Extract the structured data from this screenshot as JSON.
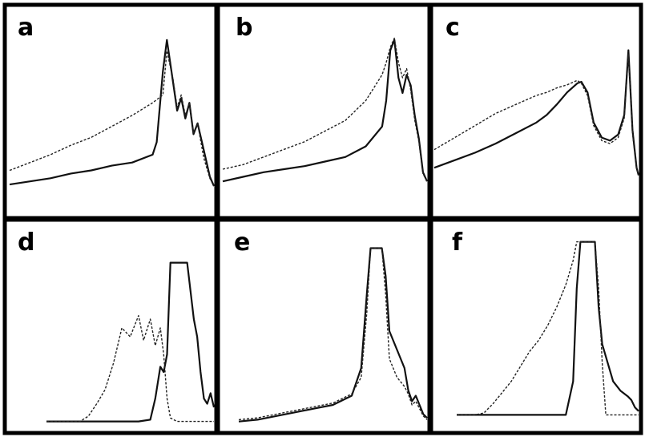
{
  "colors": {
    "frame": "#000000",
    "solid_trace": "#111111",
    "dashed_trace": "#222222",
    "background": "#ffffff"
  },
  "chart_data": [
    {
      "type": "line",
      "panel": "a",
      "x_range": [
        0,
        100
      ],
      "ylim": [
        0,
        1
      ],
      "series": [
        {
          "style": "solid",
          "x": [
            0,
            10,
            20,
            30,
            40,
            50,
            60,
            70,
            72,
            75,
            77,
            80,
            82,
            84,
            86,
            88,
            90,
            92,
            95,
            98,
            100
          ],
          "y": [
            0.03,
            0.05,
            0.07,
            0.1,
            0.12,
            0.15,
            0.17,
            0.22,
            0.3,
            0.75,
            0.95,
            0.68,
            0.5,
            0.58,
            0.45,
            0.55,
            0.35,
            0.42,
            0.25,
            0.08,
            0.02
          ]
        },
        {
          "style": "dashed",
          "x": [
            0,
            10,
            20,
            30,
            40,
            50,
            60,
            70,
            75,
            77,
            80,
            82,
            84,
            86,
            88,
            90,
            92,
            95,
            98,
            100
          ],
          "y": [
            0.12,
            0.17,
            0.22,
            0.28,
            0.33,
            0.4,
            0.47,
            0.55,
            0.6,
            0.88,
            0.7,
            0.52,
            0.6,
            0.47,
            0.55,
            0.36,
            0.42,
            0.2,
            0.07,
            0.02
          ]
        }
      ]
    },
    {
      "type": "line",
      "panel": "b",
      "x_range": [
        0,
        100
      ],
      "ylim": [
        0,
        1
      ],
      "series": [
        {
          "style": "solid",
          "x": [
            0,
            10,
            20,
            30,
            40,
            50,
            60,
            70,
            78,
            80,
            82,
            84,
            86,
            88,
            90,
            92,
            94,
            96,
            98,
            100
          ],
          "y": [
            0.02,
            0.05,
            0.08,
            0.1,
            0.12,
            0.15,
            0.18,
            0.25,
            0.38,
            0.55,
            0.88,
            0.95,
            0.7,
            0.6,
            0.72,
            0.65,
            0.45,
            0.3,
            0.08,
            0.02
          ]
        },
        {
          "style": "dashed",
          "x": [
            0,
            10,
            20,
            30,
            40,
            50,
            60,
            70,
            78,
            80,
            82,
            84,
            86,
            88,
            90,
            92,
            94,
            96,
            98,
            100
          ],
          "y": [
            0.1,
            0.13,
            0.18,
            0.23,
            0.28,
            0.35,
            0.42,
            0.55,
            0.72,
            0.8,
            0.9,
            0.96,
            0.8,
            0.7,
            0.76,
            0.62,
            0.42,
            0.28,
            0.07,
            0.02
          ]
        }
      ]
    },
    {
      "type": "line",
      "panel": "c",
      "x_range": [
        0,
        100
      ],
      "ylim": [
        0,
        1
      ],
      "series": [
        {
          "style": "solid",
          "x": [
            0,
            10,
            20,
            30,
            40,
            50,
            55,
            60,
            65,
            70,
            72,
            75,
            78,
            82,
            86,
            90,
            93,
            95,
            97,
            99,
            100
          ],
          "y": [
            0.1,
            0.15,
            0.2,
            0.26,
            0.33,
            0.4,
            0.45,
            0.52,
            0.6,
            0.66,
            0.67,
            0.6,
            0.4,
            0.3,
            0.28,
            0.32,
            0.45,
            0.88,
            0.35,
            0.1,
            0.05
          ]
        },
        {
          "style": "dashed",
          "x": [
            0,
            10,
            20,
            30,
            40,
            50,
            55,
            60,
            65,
            70,
            72,
            75,
            78,
            82,
            86,
            90,
            93,
            95,
            97,
            99,
            100
          ],
          "y": [
            0.22,
            0.3,
            0.38,
            0.46,
            0.52,
            0.58,
            0.6,
            0.63,
            0.65,
            0.68,
            0.66,
            0.58,
            0.38,
            0.28,
            0.26,
            0.3,
            0.43,
            0.85,
            0.33,
            0.1,
            0.05
          ]
        }
      ]
    },
    {
      "type": "line",
      "panel": "d",
      "x_range": [
        0,
        100
      ],
      "ylim": [
        0,
        1
      ],
      "series": [
        {
          "style": "solid",
          "x": [
            0,
            20,
            40,
            55,
            62,
            65,
            68,
            70,
            72,
            74,
            78,
            84,
            88,
            90,
            92,
            94,
            96,
            98,
            100
          ],
          "y": [
            0.02,
            0.02,
            0.02,
            0.02,
            0.03,
            0.15,
            0.33,
            0.3,
            0.4,
            0.92,
            0.92,
            0.92,
            0.6,
            0.5,
            0.3,
            0.15,
            0.12,
            0.18,
            0.1
          ]
        },
        {
          "style": "dashed",
          "x": [
            0,
            20,
            25,
            30,
            35,
            40,
            45,
            50,
            55,
            58,
            62,
            65,
            68,
            70,
            72,
            74,
            78,
            80,
            85,
            90,
            95,
            100
          ],
          "y": [
            0.02,
            0.02,
            0.05,
            0.12,
            0.2,
            0.35,
            0.55,
            0.5,
            0.62,
            0.48,
            0.6,
            0.45,
            0.55,
            0.4,
            0.15,
            0.04,
            0.02,
            0.02,
            0.02,
            0.02,
            0.02,
            0.02
          ]
        }
      ]
    },
    {
      "type": "line",
      "panel": "e",
      "x_range": [
        0,
        100
      ],
      "ylim": [
        0,
        1
      ],
      "series": [
        {
          "style": "solid",
          "x": [
            0,
            10,
            20,
            30,
            40,
            50,
            60,
            65,
            68,
            70,
            72,
            76,
            78,
            80,
            82,
            84,
            88,
            90,
            92,
            94,
            96,
            98,
            100
          ],
          "y": [
            0.01,
            0.02,
            0.04,
            0.06,
            0.08,
            0.1,
            0.15,
            0.3,
            0.7,
            0.95,
            0.95,
            0.95,
            0.8,
            0.5,
            0.45,
            0.4,
            0.3,
            0.18,
            0.12,
            0.15,
            0.1,
            0.05,
            0.03
          ]
        },
        {
          "style": "dashed",
          "x": [
            0,
            10,
            20,
            30,
            40,
            50,
            60,
            65,
            68,
            70,
            72,
            76,
            78,
            80,
            82,
            84,
            88,
            90,
            92,
            94,
            96,
            98,
            100
          ],
          "y": [
            0.02,
            0.03,
            0.05,
            0.07,
            0.09,
            0.11,
            0.16,
            0.25,
            0.6,
            0.95,
            0.95,
            0.95,
            0.7,
            0.35,
            0.3,
            0.25,
            0.2,
            0.16,
            0.1,
            0.12,
            0.08,
            0.04,
            0.02
          ]
        }
      ]
    },
    {
      "type": "line",
      "panel": "f",
      "x_range": [
        0,
        100
      ],
      "ylim": [
        0,
        1
      ],
      "series": [
        {
          "style": "solid",
          "x": [
            0,
            20,
            40,
            55,
            60,
            64,
            66,
            68,
            70,
            74,
            76,
            78,
            80,
            83,
            86,
            90,
            94,
            96,
            98,
            100
          ],
          "y": [
            0.02,
            0.02,
            0.02,
            0.02,
            0.02,
            0.2,
            0.7,
            0.95,
            0.95,
            0.95,
            0.95,
            0.6,
            0.4,
            0.3,
            0.2,
            0.15,
            0.12,
            0.1,
            0.06,
            0.04
          ]
        },
        {
          "style": "dashed",
          "x": [
            0,
            10,
            15,
            20,
            25,
            30,
            35,
            40,
            45,
            50,
            55,
            60,
            64,
            66,
            68,
            70,
            74,
            76,
            78,
            80,
            82,
            85,
            90,
            95,
            100
          ],
          "y": [
            0.02,
            0.02,
            0.03,
            0.08,
            0.14,
            0.2,
            0.28,
            0.36,
            0.42,
            0.5,
            0.6,
            0.72,
            0.85,
            0.95,
            0.95,
            0.95,
            0.95,
            0.95,
            0.7,
            0.3,
            0.02,
            0.02,
            0.02,
            0.02,
            0.02
          ]
        }
      ]
    }
  ]
}
